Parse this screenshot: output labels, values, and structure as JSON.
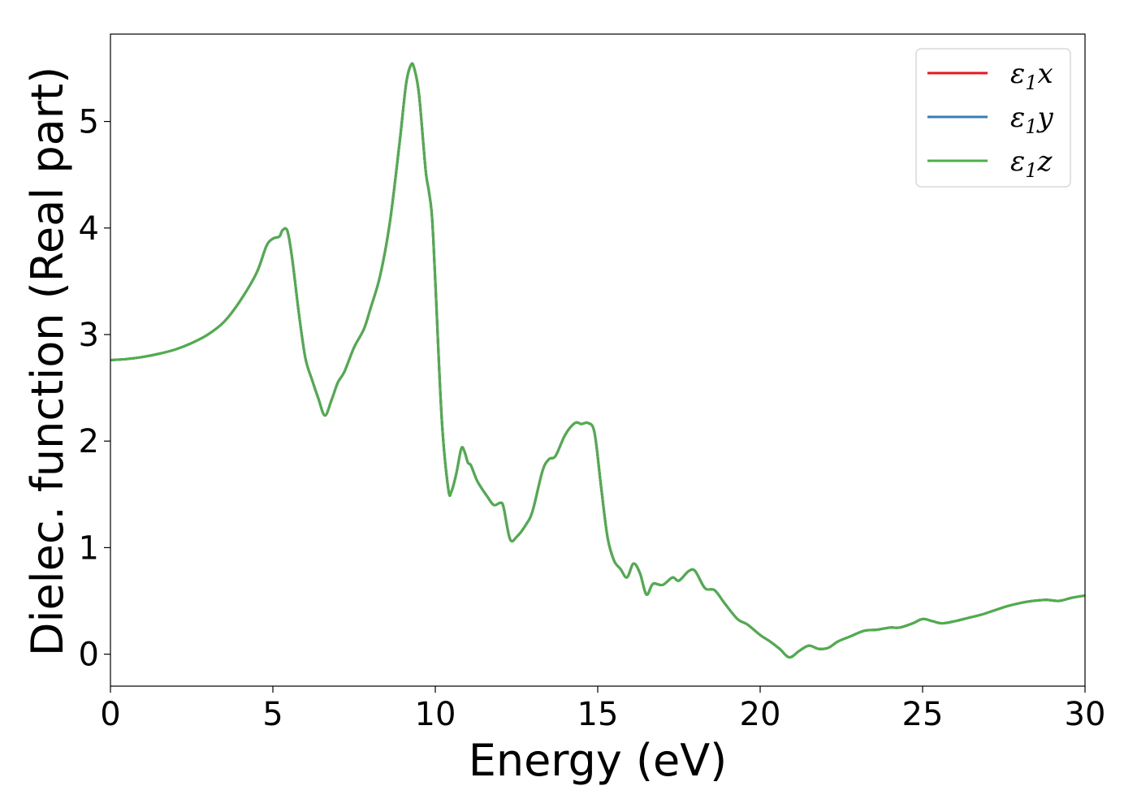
{
  "chart_data": {
    "type": "line",
    "title": "",
    "xlabel": "Energy (eV)",
    "ylabel": "Dielec. function (Real part)",
    "xlim": [
      0,
      30
    ],
    "ylim": [
      -0.3,
      5.82
    ],
    "xticks": [
      0,
      5,
      10,
      15,
      20,
      25,
      30
    ],
    "yticks": [
      0,
      1,
      2,
      3,
      4,
      5
    ],
    "grid": false,
    "legend_position": "top-right",
    "series": [
      {
        "name": "x",
        "legend_symbol": "ε",
        "legend_subscript": "1",
        "color": "#e41a1c"
      },
      {
        "name": "y",
        "legend_symbol": "ε",
        "legend_subscript": "1",
        "color": "#377eb8"
      },
      {
        "name": "z",
        "legend_symbol": "ε",
        "legend_subscript": "1",
        "color": "#4daf4a"
      }
    ],
    "x": [
      0,
      0.5,
      1,
      1.5,
      2,
      2.5,
      3,
      3.5,
      4,
      4.5,
      4.8,
      5.0,
      5.2,
      5.3,
      5.45,
      5.6,
      5.8,
      6.0,
      6.2,
      6.4,
      6.6,
      6.8,
      7.0,
      7.2,
      7.5,
      7.8,
      8.0,
      8.3,
      8.6,
      8.9,
      9.1,
      9.25,
      9.35,
      9.5,
      9.7,
      9.8,
      9.9,
      10.0,
      10.2,
      10.4,
      10.5,
      10.65,
      10.8,
      10.9,
      11.0,
      11.1,
      11.3,
      11.6,
      11.8,
      12.0,
      12.1,
      12.3,
      12.5,
      12.8,
      13.0,
      13.3,
      13.5,
      13.7,
      14.0,
      14.3,
      14.5,
      14.7,
      14.9,
      15.1,
      15.3,
      15.5,
      15.7,
      15.9,
      16.1,
      16.3,
      16.5,
      16.7,
      17.0,
      17.3,
      17.5,
      17.8,
      18.0,
      18.3,
      18.6,
      18.9,
      19.3,
      19.6,
      20.0,
      20.3,
      20.6,
      20.9,
      21.2,
      21.5,
      21.8,
      22.1,
      22.4,
      22.8,
      23.2,
      23.6,
      24.0,
      24.3,
      24.7,
      25.0,
      25.3,
      25.6,
      26.0,
      26.4,
      26.8,
      27.2,
      27.6,
      28.0,
      28.4,
      28.8,
      29.2,
      29.6,
      30.0
    ],
    "values": [
      2.76,
      2.77,
      2.79,
      2.82,
      2.86,
      2.92,
      3.0,
      3.12,
      3.32,
      3.58,
      3.83,
      3.9,
      3.92,
      3.98,
      3.97,
      3.7,
      3.2,
      2.78,
      2.58,
      2.4,
      2.24,
      2.38,
      2.55,
      2.65,
      2.88,
      3.05,
      3.24,
      3.55,
      4.05,
      4.8,
      5.35,
      5.53,
      5.5,
      5.25,
      4.55,
      4.35,
      4.1,
      3.5,
      2.2,
      1.55,
      1.53,
      1.7,
      1.93,
      1.9,
      1.8,
      1.77,
      1.62,
      1.48,
      1.4,
      1.42,
      1.38,
      1.08,
      1.1,
      1.22,
      1.35,
      1.72,
      1.83,
      1.86,
      2.06,
      2.17,
      2.16,
      2.17,
      2.08,
      1.58,
      1.1,
      0.88,
      0.8,
      0.72,
      0.85,
      0.76,
      0.56,
      0.66,
      0.65,
      0.72,
      0.69,
      0.78,
      0.78,
      0.62,
      0.6,
      0.48,
      0.33,
      0.28,
      0.18,
      0.12,
      0.05,
      -0.03,
      0.03,
      0.08,
      0.05,
      0.06,
      0.12,
      0.17,
      0.22,
      0.23,
      0.25,
      0.25,
      0.29,
      0.33,
      0.31,
      0.29,
      0.31,
      0.34,
      0.37,
      0.41,
      0.45,
      0.48,
      0.5,
      0.51,
      0.5,
      0.53,
      0.55
    ]
  }
}
